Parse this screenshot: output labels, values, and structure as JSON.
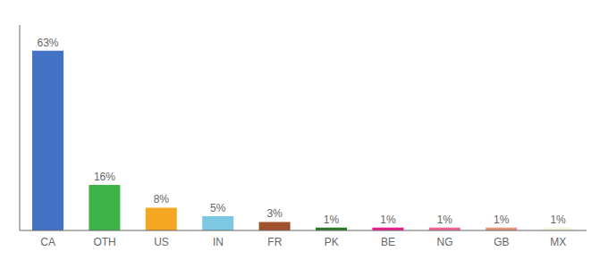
{
  "chart_data": {
    "type": "bar",
    "categories": [
      "CA",
      "OTH",
      "US",
      "IN",
      "FR",
      "PK",
      "BE",
      "NG",
      "GB",
      "MX"
    ],
    "values": [
      63,
      16,
      8,
      5,
      3,
      1,
      1,
      1,
      1,
      1
    ],
    "value_labels": [
      "63%",
      "16%",
      "8%",
      "5%",
      "3%",
      "1%",
      "1%",
      "1%",
      "1%",
      "1%"
    ],
    "colors": [
      "#4472c4",
      "#3db34a",
      "#f5a623",
      "#7ec8e3",
      "#a0522d",
      "#2a7a2a",
      "#e91e8c",
      "#f06292",
      "#e8937a",
      "#f5f5e0"
    ],
    "ylim": [
      0,
      72
    ],
    "grid": false,
    "data_labels": true,
    "tick_labels": "x"
  }
}
